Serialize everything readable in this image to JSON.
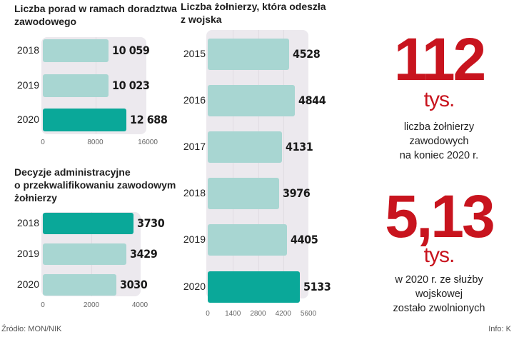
{
  "chart_data": [
    {
      "type": "bar",
      "title": "Liczba porad w ramach doradztwa zawodowego",
      "categories": [
        "2018",
        "2019",
        "2020"
      ],
      "values": [
        10059,
        10023,
        12688
      ],
      "value_labels": [
        "10 059",
        "10 023",
        "12 688"
      ],
      "highlight": [
        false,
        false,
        true
      ],
      "xlim": [
        0,
        16000
      ],
      "ticks": [
        "0",
        "8000",
        "16000"
      ],
      "tick_values": [
        0,
        8000,
        16000
      ]
    },
    {
      "type": "bar",
      "title": "Decyzje administracyjne o przekwalifikowaniu zawodowym żołnierzy",
      "categories": [
        "2018",
        "2019",
        "2020"
      ],
      "values": [
        3730,
        3429,
        3030
      ],
      "value_labels": [
        "3730",
        "3429",
        "3030"
      ],
      "highlight": [
        true,
        false,
        false
      ],
      "xlim": [
        0,
        4000
      ],
      "ticks": [
        "0",
        "2000",
        "4000"
      ],
      "tick_values": [
        0,
        2000,
        4000
      ]
    },
    {
      "type": "bar",
      "title": "Liczba żołnierzy, która odeszła z wojska",
      "categories": [
        "2015",
        "2016",
        "2017",
        "2018",
        "2019",
        "2020"
      ],
      "values": [
        4528,
        4844,
        4131,
        3976,
        4405,
        5133
      ],
      "value_labels": [
        "4528",
        "4844",
        "4131",
        "3976",
        "4405",
        "5133"
      ],
      "highlight": [
        false,
        false,
        false,
        false,
        false,
        true
      ],
      "xlim": [
        0,
        5600
      ],
      "ticks": [
        "0",
        "1400",
        "2800",
        "4200",
        "5600"
      ],
      "tick_values": [
        0,
        1400,
        2800,
        4200,
        5600
      ]
    }
  ],
  "titles": {
    "c1a": "Liczba porad w ramach doradztwa",
    "c1b": "zawodowego",
    "c2a": "Decyzje administracyjne",
    "c2b": "o przekwalifikowaniu zawodowym",
    "c2c": "żołnierzy",
    "c3a": "Liczba żołnierzy, która odeszła",
    "c3b": "z wojska"
  },
  "stats": [
    {
      "number": "112",
      "unit": "tys.",
      "desc": [
        "liczba żołnierzy",
        "zawodowych",
        "na koniec 2020 r."
      ]
    },
    {
      "number": "5,13",
      "unit": "tys.",
      "desc": [
        "w 2020 r. ze służby",
        "wojskowej",
        "zostało zwolnionych"
      ]
    }
  ],
  "footer": {
    "source": "Źródło: MON/NIK",
    "info": "Info: K"
  },
  "colors": {
    "bar_light": "#a8d6d2",
    "bar_highlight": "#0aa899",
    "accent_red": "#c8141e"
  }
}
